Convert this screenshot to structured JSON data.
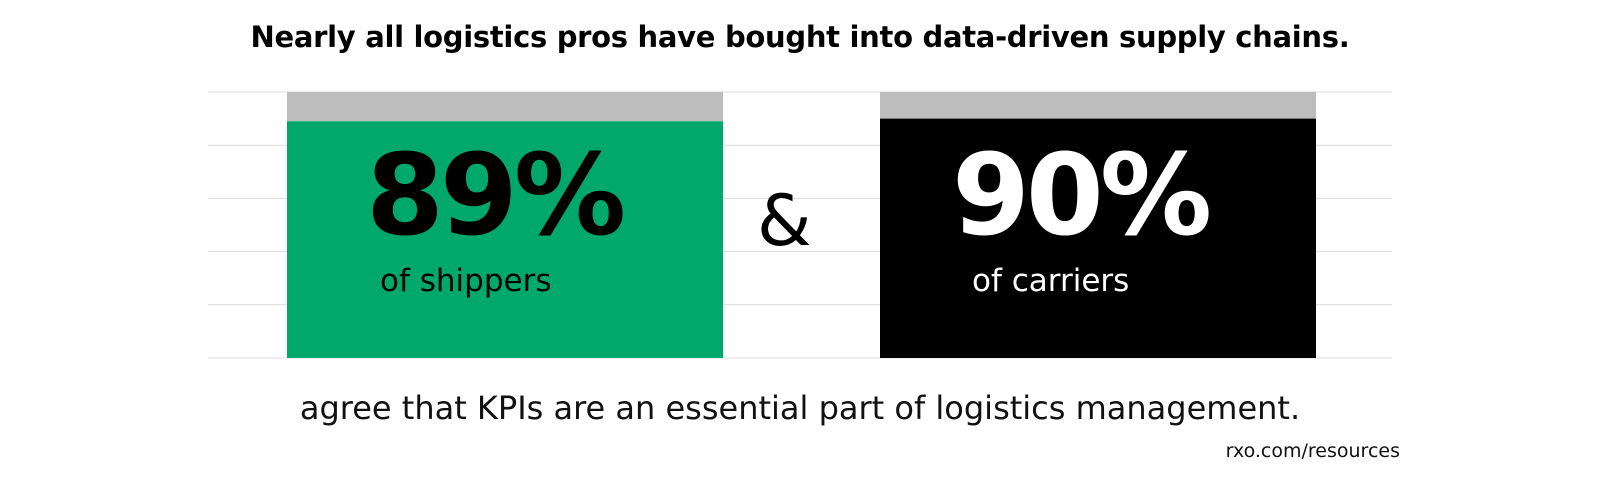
{
  "title": "Nearly all logistics pros have bought into data-driven supply chains.",
  "chart_data": {
    "type": "bar",
    "categories": [
      "of shippers",
      "of carriers"
    ],
    "values": [
      89,
      90
    ],
    "value_labels": [
      "89%",
      "90%"
    ],
    "ylim": [
      0,
      100
    ],
    "grid": true,
    "colors": [
      "#00a86b",
      "#000000"
    ],
    "remainder_color": "#bdbdbd",
    "value_text_colors": [
      "#000000",
      "#ffffff"
    ]
  },
  "connector": "&",
  "caption": "agree that KPIs are an essential part of logistics management.",
  "source": "rxo.com/resources"
}
